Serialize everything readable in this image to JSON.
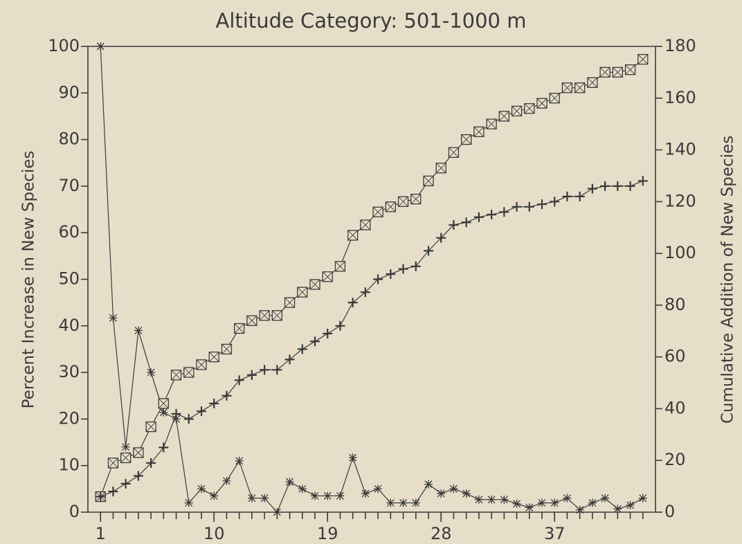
{
  "chart_data": {
    "type": "line",
    "title": "Altitude Category: 501-1000 m",
    "ylabel": "Percent Increase in New Species",
    "y2label": "Cumulative Addition of New Species",
    "x": [
      1,
      2,
      3,
      4,
      5,
      6,
      7,
      8,
      9,
      10,
      11,
      12,
      13,
      14,
      15,
      16,
      17,
      18,
      19,
      20,
      21,
      22,
      23,
      24,
      25,
      26,
      27,
      28,
      29,
      30,
      31,
      32,
      33,
      34,
      35,
      36,
      37,
      38,
      39,
      40,
      41,
      42,
      43,
      44
    ],
    "xlim": [
      0,
      45
    ],
    "xticks": [
      1,
      10,
      19,
      28,
      37
    ],
    "ylim": [
      0,
      100
    ],
    "yticks": [
      0,
      10,
      20,
      30,
      40,
      50,
      60,
      70,
      80,
      90,
      100
    ],
    "y2lim": [
      0,
      180
    ],
    "y2ticks": [
      0,
      20,
      40,
      60,
      80,
      100,
      120,
      140,
      160,
      180
    ],
    "series": [
      {
        "color": "#3a3a3a",
        "marker": "star",
        "values": [
          100,
          41.7,
          14,
          39,
          30,
          21.4,
          20,
          2,
          5,
          3.5,
          6.7,
          11,
          3,
          3,
          0,
          6.5,
          5,
          3.5,
          3.5,
          3.5,
          11.7,
          4,
          5,
          2,
          2,
          2,
          6,
          4,
          5,
          4,
          2.7,
          2.7,
          2.7,
          1.8,
          1,
          2,
          2,
          3,
          0.5,
          2,
          3,
          0.7,
          1.5,
          3
        ]
      },
      {
        "color": "#3a3a3a",
        "marker": "square",
        "axis": "y2",
        "values": [
          6,
          19,
          21,
          23,
          33,
          42,
          53,
          54,
          57,
          60,
          63,
          71,
          74,
          76,
          76,
          81,
          85,
          88,
          91,
          95,
          107,
          111,
          116,
          118,
          120,
          121,
          128,
          133,
          139,
          144,
          147,
          150,
          153,
          155,
          156,
          158,
          160,
          164,
          164,
          166,
          170,
          170,
          171,
          175
        ]
      },
      {
        "color": "#3a3a3a",
        "marker": "plus",
        "axis": "y2",
        "values": [
          6,
          8,
          11,
          14,
          19,
          25,
          38,
          36,
          39,
          42,
          45,
          51,
          53,
          55,
          55,
          59,
          63,
          66,
          69,
          72,
          81,
          85,
          90,
          92,
          94,
          95,
          101,
          106,
          111,
          112,
          114,
          115,
          116,
          118,
          118,
          119,
          120,
          122,
          122,
          125,
          126,
          126,
          126,
          128
        ]
      }
    ]
  }
}
